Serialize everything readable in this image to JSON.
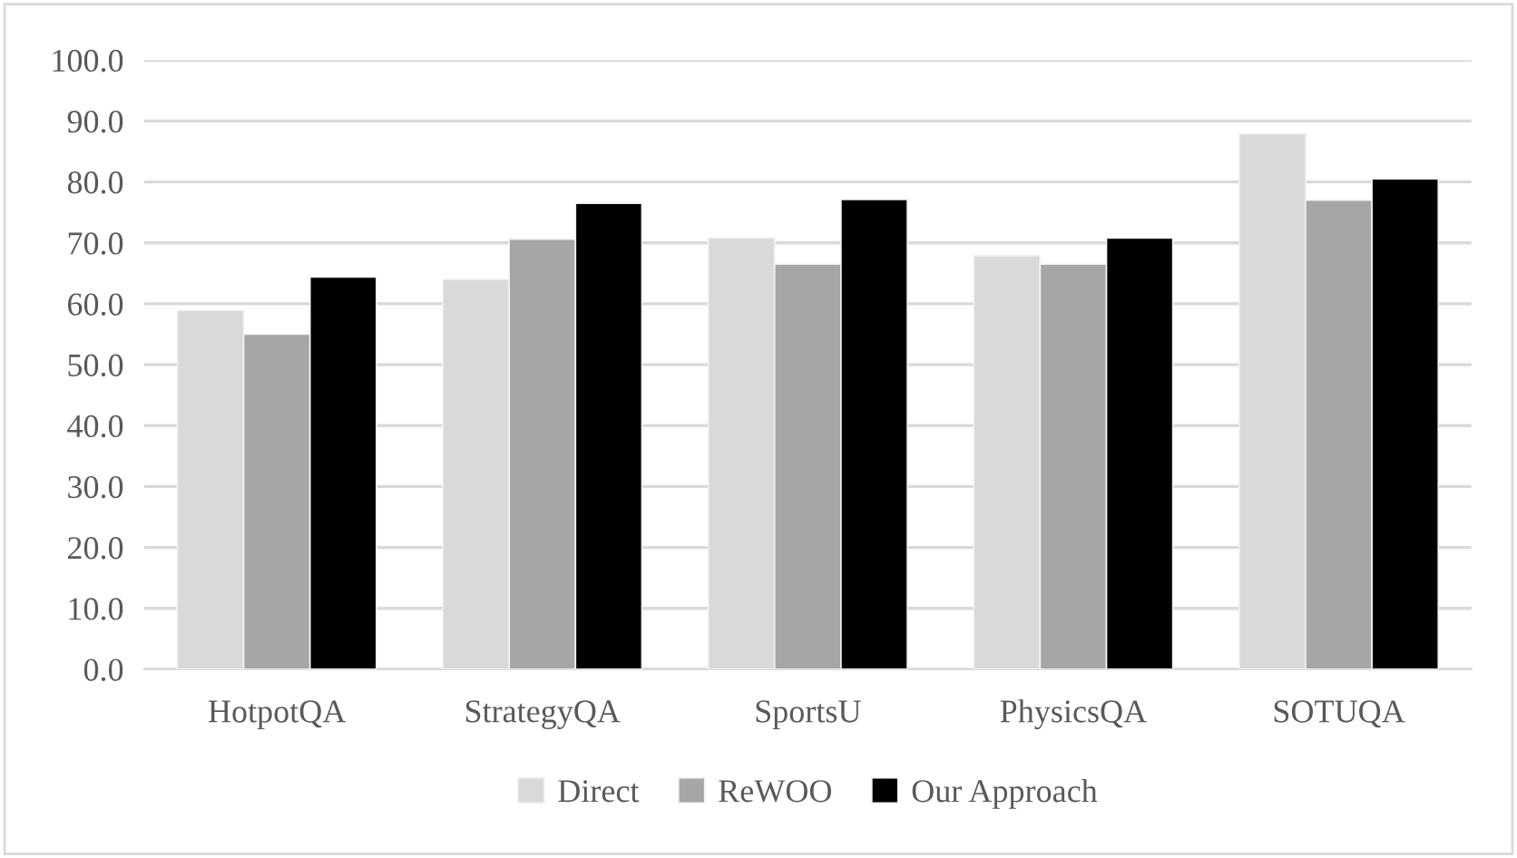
{
  "chart_data": {
    "type": "bar",
    "categories": [
      "HotpotQA",
      "StrategyQA",
      "SportsU",
      "PhysicsQA",
      "SOTUQA"
    ],
    "series": [
      {
        "name": "Direct",
        "color": "#d9d9d9",
        "values": [
          58.9,
          64.0,
          70.8,
          67.9,
          87.9
        ]
      },
      {
        "name": "ReWOO",
        "color": "#a6a6a6",
        "values": [
          55.0,
          70.6,
          66.5,
          66.5,
          77.0
        ]
      },
      {
        "name": "Our Approach",
        "color": "#000000",
        "values": [
          64.4,
          76.5,
          77.1,
          70.8,
          80.5
        ]
      }
    ],
    "ylim": [
      0,
      100
    ],
    "yticks": [
      {
        "value": 0,
        "label": "0.0"
      },
      {
        "value": 10,
        "label": "10.0"
      },
      {
        "value": 20,
        "label": "20.0"
      },
      {
        "value": 30,
        "label": "30.0"
      },
      {
        "value": 40,
        "label": "40.0"
      },
      {
        "value": 50,
        "label": "50.0"
      },
      {
        "value": 60,
        "label": "60.0"
      },
      {
        "value": 70,
        "label": "70.0"
      },
      {
        "value": 80,
        "label": "80.0"
      },
      {
        "value": 90,
        "label": "90.0"
      },
      {
        "value": 100,
        "label": "100.0"
      }
    ],
    "grid": "y",
    "legend": "bottom"
  }
}
